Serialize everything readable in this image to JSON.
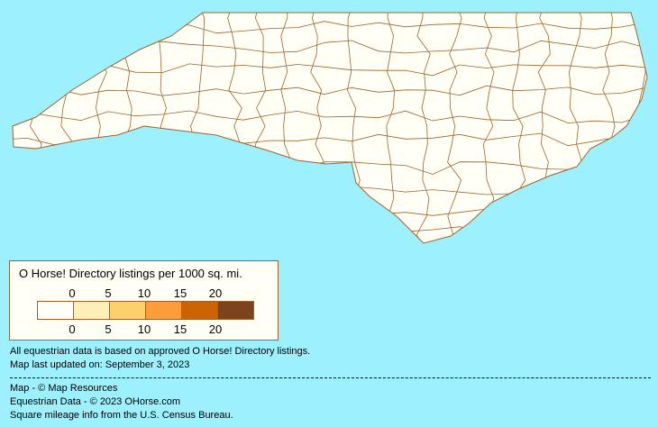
{
  "map": {
    "state": "North Carolina",
    "land_color": "#fffff5",
    "border_color": "#a0622d",
    "water_color": "#9df0fe"
  },
  "legend": {
    "title": "O Horse! Directory listings per 1000 sq. mi.",
    "ticks": [
      "0",
      "5",
      "10",
      "15",
      "20"
    ],
    "colors": [
      "#fffff5",
      "#fcf0b8",
      "#fcd06a",
      "#fc9c3a",
      "#cc6404",
      "#7c441c"
    ]
  },
  "notes": {
    "line1": "All equestrian data is based on approved O Horse! Directory listings.",
    "line2": "Map last updated on: September 3, 2023"
  },
  "credits": {
    "map": "Map - © Map Resources",
    "data": "Equestrian Data - © 2023 OHorse.com",
    "census": "Square mileage info from the U.S. Census Bureau."
  }
}
